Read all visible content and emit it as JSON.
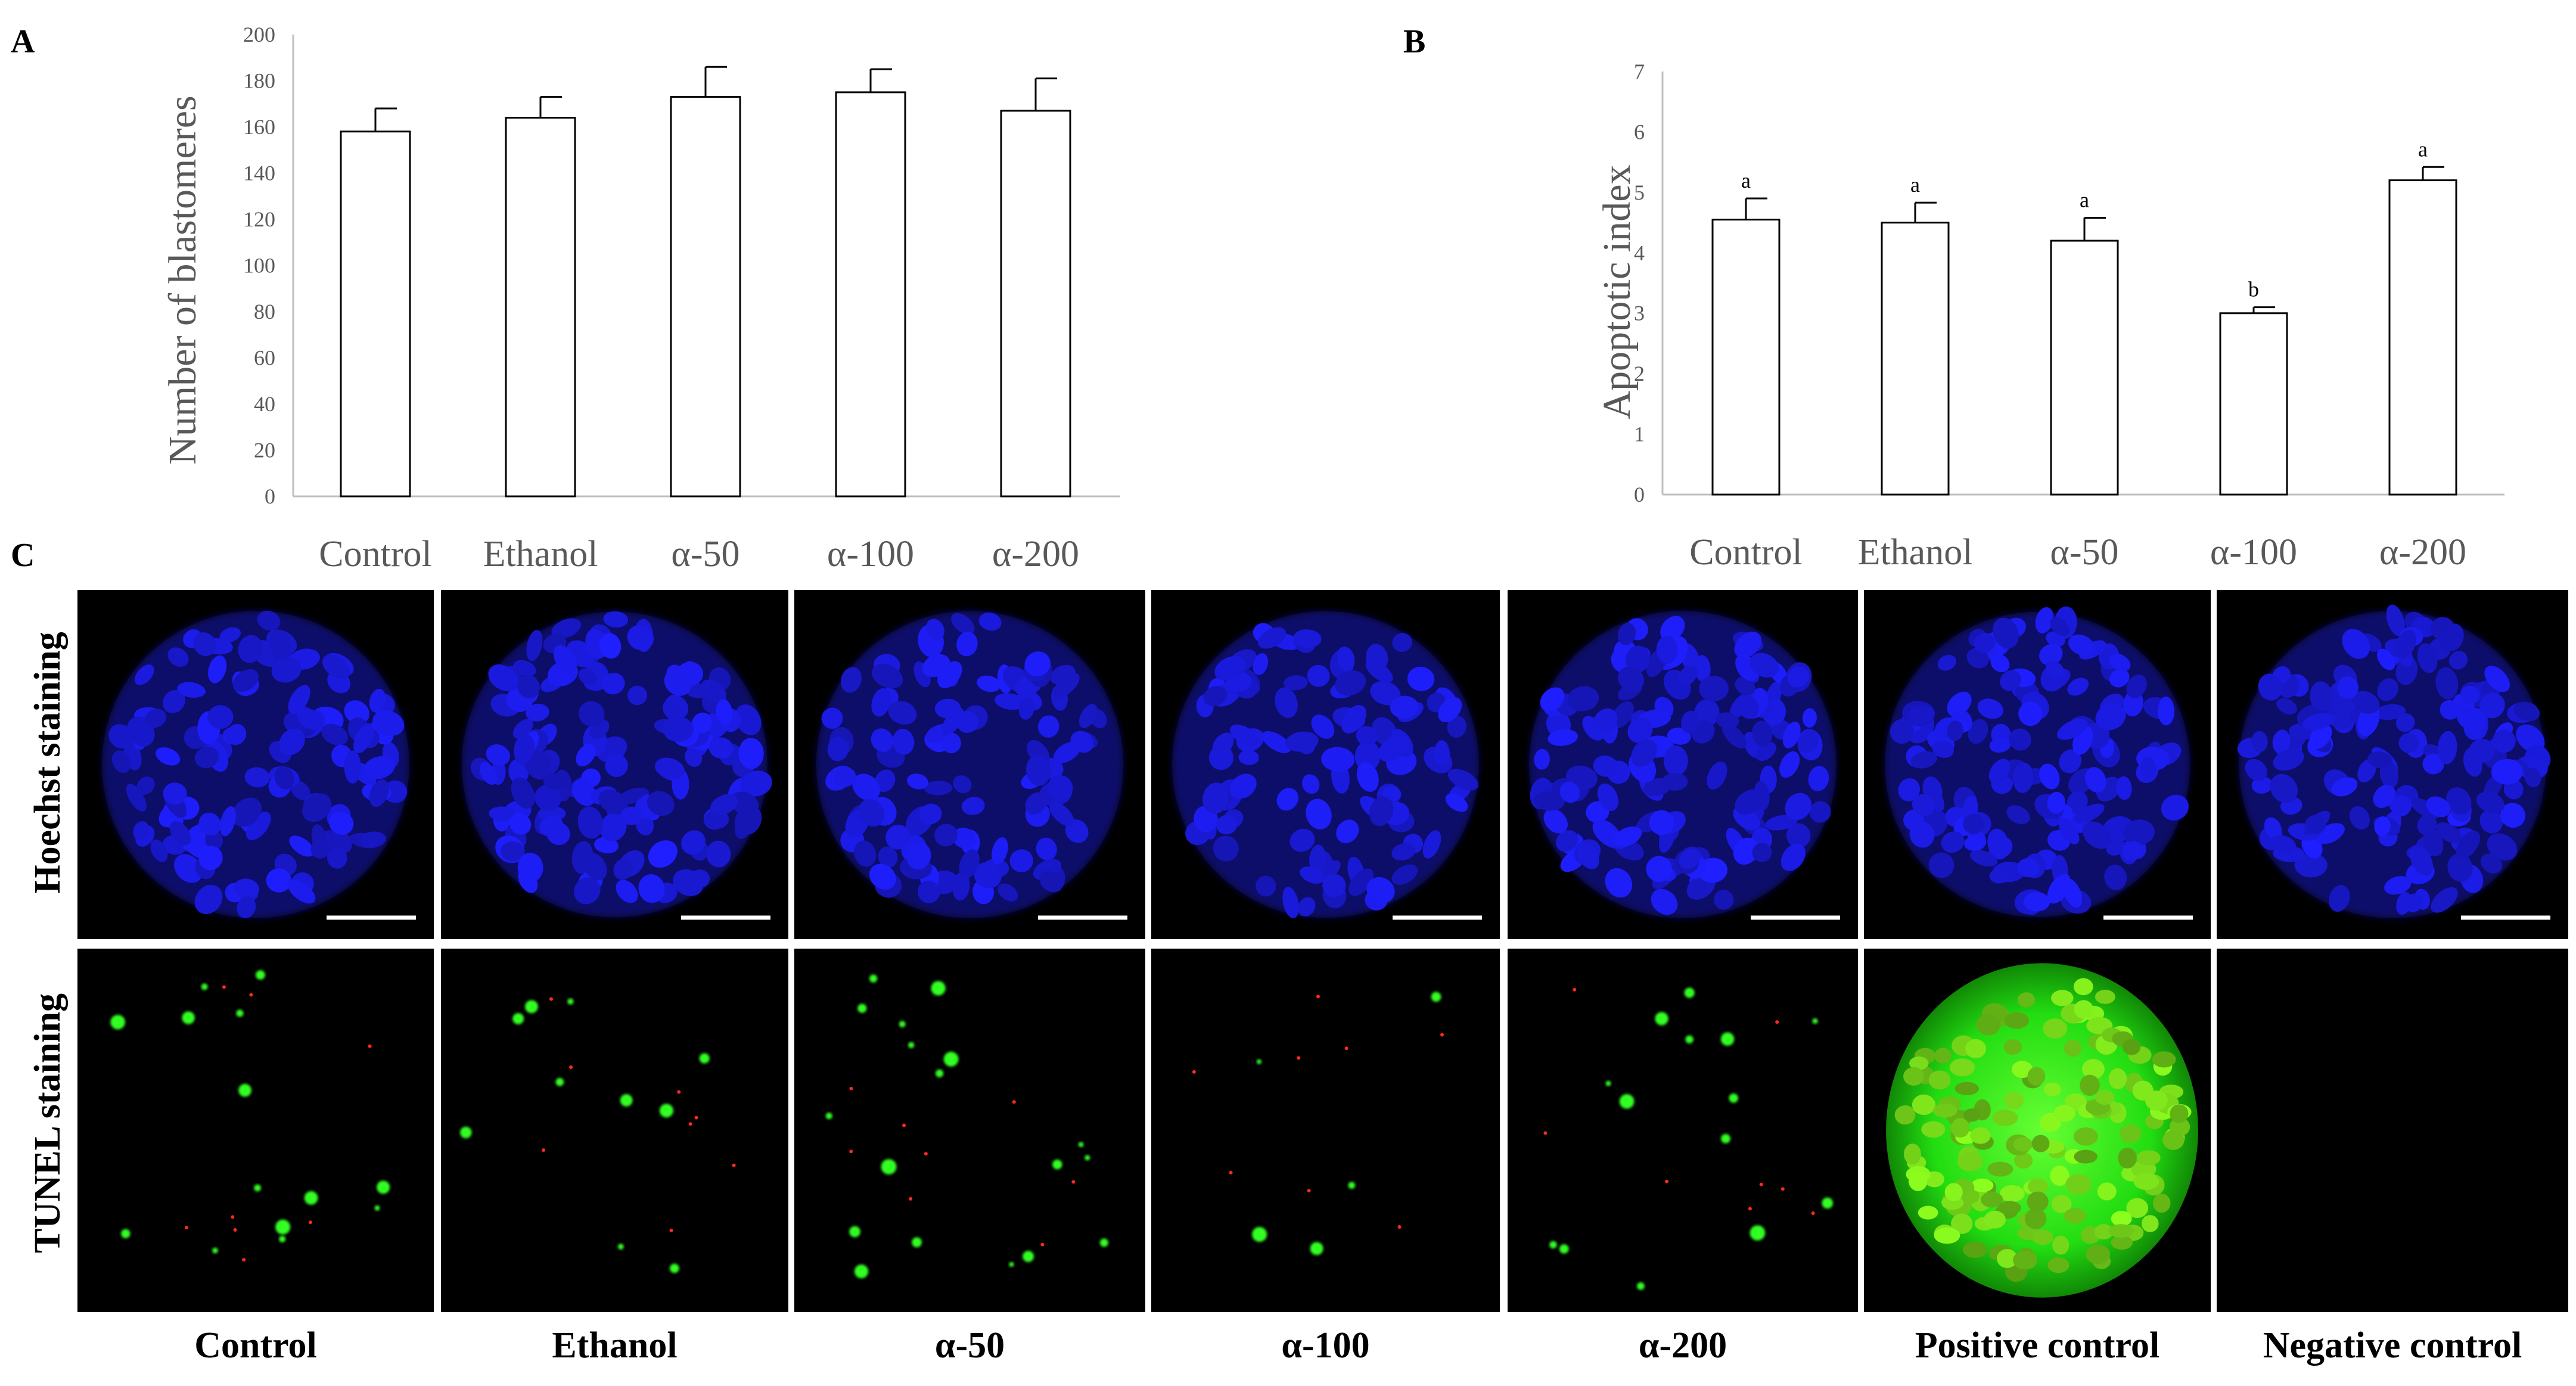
{
  "panels": {
    "a": "A",
    "b": "B",
    "c": "C"
  },
  "chart_data": [
    {
      "type": "bar",
      "ylabel": "Number of blastomeres",
      "categories": [
        "Control",
        "Ethanol",
        "α-50",
        "α-100",
        "α-200"
      ],
      "values": [
        158,
        164,
        173,
        175,
        167
      ],
      "errors": [
        10,
        9,
        13,
        10,
        14
      ],
      "ylim": [
        0,
        200
      ],
      "yticks": [
        0,
        20,
        40,
        60,
        80,
        100,
        120,
        140,
        160,
        180,
        200
      ],
      "grid": false
    },
    {
      "type": "bar",
      "ylabel": "Apoptotic index",
      "categories": [
        "Control",
        "Ethanol",
        "α-50",
        "α-100",
        "α-200"
      ],
      "values": [
        4.55,
        4.5,
        4.2,
        3.0,
        5.2
      ],
      "errors": [
        0.35,
        0.33,
        0.38,
        0.1,
        0.22
      ],
      "significance": [
        "a",
        "a",
        "a",
        "b",
        "a"
      ],
      "ylim": [
        0,
        7
      ],
      "yticks": [
        0,
        1,
        2,
        3,
        4,
        5,
        6,
        7
      ],
      "grid": false
    }
  ],
  "microscopy": {
    "row_labels": [
      "Hoechst staining",
      "TUNEL staining"
    ],
    "columns": [
      "Control",
      "Ethanol",
      "α-50",
      "α-100",
      "α-200",
      "Positive control",
      "Negative control"
    ],
    "colors": {
      "hoechst_bg": "#000000",
      "hoechst_nucleus": "#1a1aff",
      "tunel_signal": "#33ff22"
    }
  }
}
